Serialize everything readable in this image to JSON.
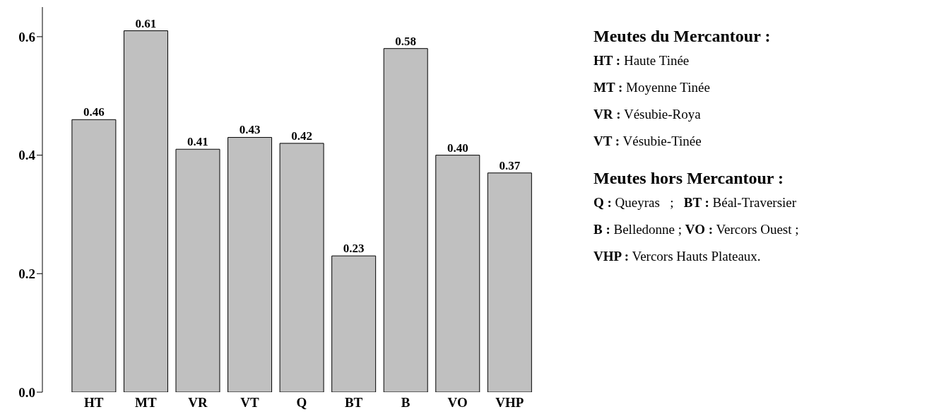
{
  "chart_data": {
    "type": "bar",
    "categories": [
      "HT",
      "MT",
      "VR",
      "VT",
      "Q",
      "BT",
      "B",
      "VO",
      "VHP"
    ],
    "values": [
      0.46,
      0.61,
      0.41,
      0.43,
      0.42,
      0.23,
      0.58,
      0.4,
      0.37
    ],
    "value_labels": [
      "0.46",
      "0.61",
      "0.41",
      "0.43",
      "0.42",
      "0.23",
      "0.58",
      "0.40",
      "0.37"
    ],
    "color": "#c0c0c0",
    "ylim": [
      0,
      0.65
    ],
    "yticks": [
      {
        "value": 0,
        "label": "0.0"
      },
      {
        "value": 0.2,
        "label": "0.2"
      },
      {
        "value": 0.4,
        "label": "0.4"
      },
      {
        "value": 0.6,
        "label": "0.6"
      }
    ],
    "grid": false,
    "legend": false,
    "annotations": [
      "Meutes du Mercantour :",
      "HT : Haute Tinée",
      "MT : Moyenne Tinée",
      "VR : Vésubie-Roya",
      "VT : Vésubie-Tinée",
      "Meutes hors Mercantour :",
      "Q : Queyras   ;   BT : Béal-Traversier",
      "B : Belledonne ; VO : Vercors Ouest ;",
      "VHP : Vercors Hauts Plateaux."
    ]
  }
}
